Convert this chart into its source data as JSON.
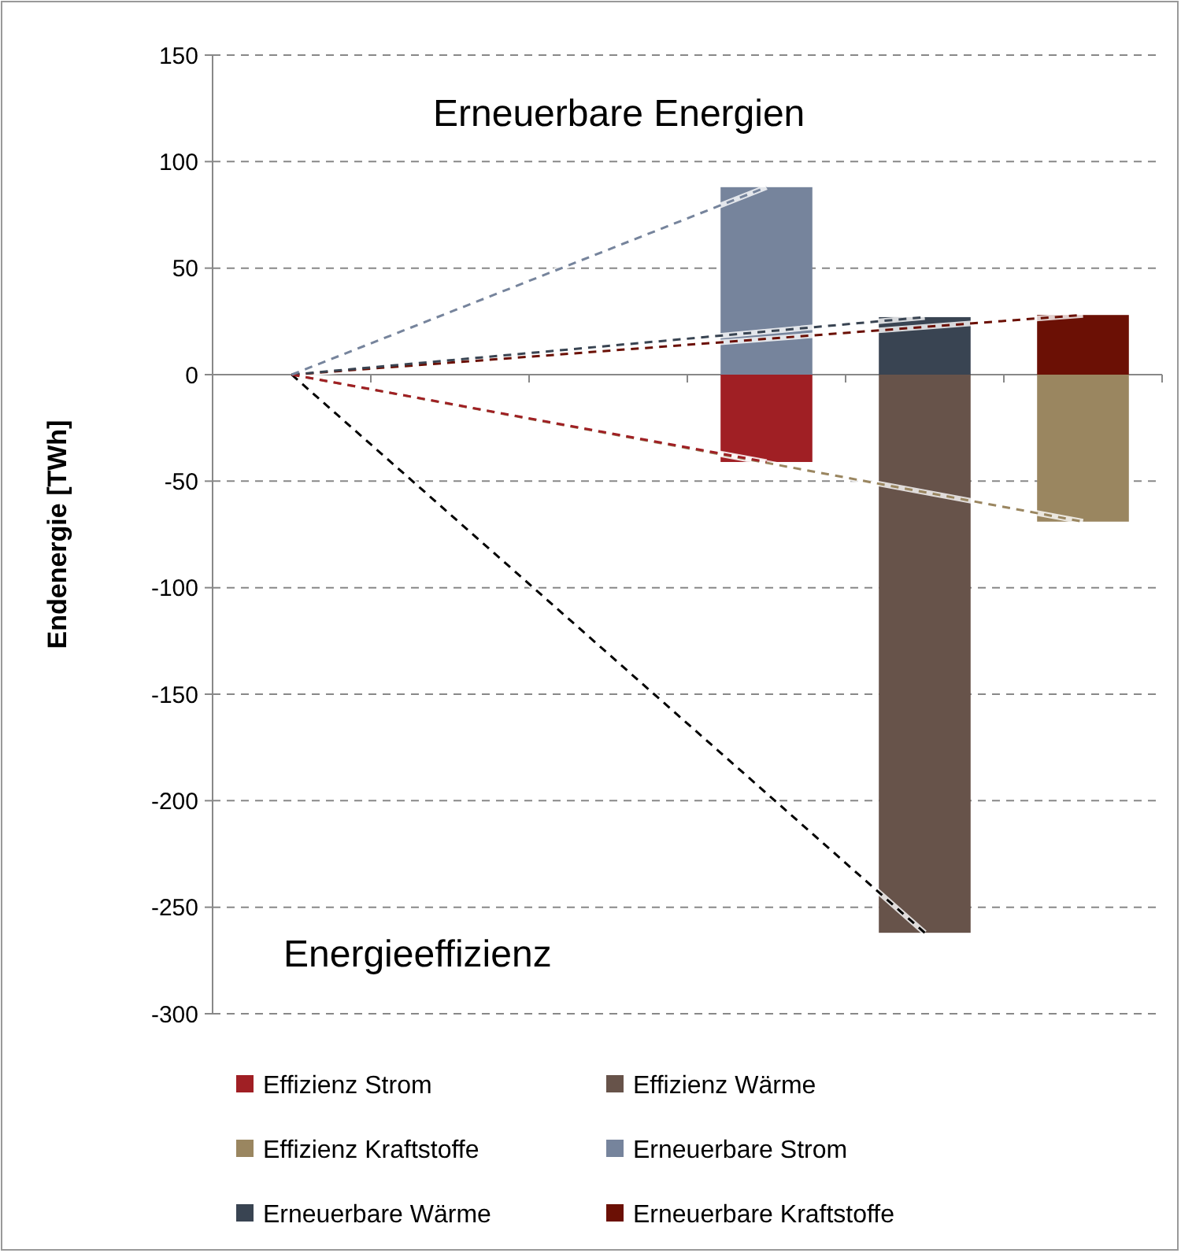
{
  "chart_data": {
    "type": "bar",
    "stacked": true,
    "ylabel": "Endenergie [TWh]",
    "annotations": [
      "Erneuerbare Energien",
      "Energieeffizienz"
    ],
    "categories": [
      null,
      null,
      null,
      null,
      null,
      null
    ],
    "series": [
      {
        "name": "Effizienz Strom",
        "color": "#a01f24",
        "values": [
          null,
          null,
          null,
          -41,
          null,
          null
        ]
      },
      {
        "name": "Effizienz Wärme",
        "color": "#67534a",
        "values": [
          null,
          null,
          null,
          null,
          -262,
          null
        ]
      },
      {
        "name": "Effizienz Kraftstoffe",
        "color": "#9a8660",
        "values": [
          null,
          null,
          null,
          null,
          null,
          -69
        ]
      },
      {
        "name": "Erneuerbare Strom",
        "color": "#76849c",
        "values": [
          null,
          null,
          null,
          88,
          null,
          null
        ]
      },
      {
        "name": "Erneuerbare Wärme",
        "color": "#394452",
        "values": [
          null,
          null,
          null,
          null,
          27,
          null
        ]
      },
      {
        "name": "Erneuerbare Kraftstoffe",
        "color": "#6b1005",
        "values": [
          null,
          null,
          null,
          null,
          null,
          28
        ]
      },
      {
        "type": "line",
        "color": "#76849c",
        "values": [
          0,
          null,
          null,
          88,
          null,
          null
        ]
      },
      {
        "type": "line",
        "color": "#a01f24",
        "values": [
          0,
          null,
          null,
          -41,
          null,
          null
        ]
      },
      {
        "type": "line",
        "color": "#394452",
        "values": [
          0,
          null,
          null,
          null,
          27,
          null
        ]
      },
      {
        "type": "line",
        "color": "#000000",
        "values": [
          0,
          null,
          null,
          null,
          -262,
          null
        ]
      },
      {
        "type": "line",
        "color": "#9a8660",
        "values": [
          0,
          null,
          null,
          null,
          null,
          -69
        ]
      },
      {
        "type": "line",
        "color": "#6b1005",
        "values": [
          0,
          null,
          null,
          null,
          null,
          28
        ]
      }
    ],
    "ylim": [
      -300,
      150
    ],
    "yticks": [
      -300,
      -250,
      -200,
      -150,
      -100,
      -50,
      0,
      50,
      100,
      150
    ],
    "grid": "y",
    "legend": "bottom",
    "line_style": "dashed"
  }
}
